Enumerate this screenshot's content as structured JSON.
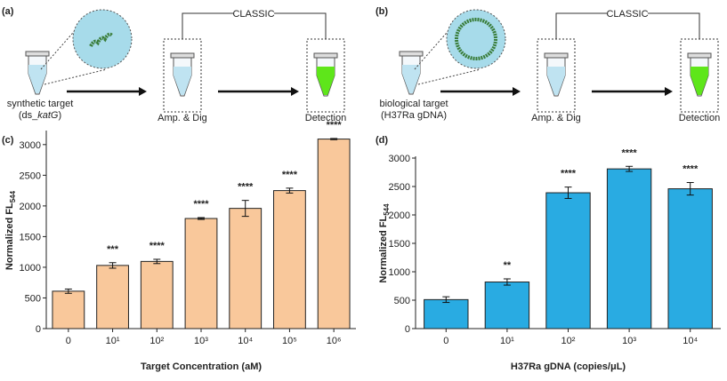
{
  "diagrams": [
    {
      "panel": "(a)",
      "bracket": "CLASSIC",
      "target_line1": "synthetic target",
      "target_line2": [
        "(ds_",
        "katG",
        ")"
      ],
      "step2": "Amp. & Dig",
      "step3": "Detection"
    },
    {
      "panel": "(b)",
      "bracket": "CLASSIC",
      "target_line1": "biological target",
      "target_line2": [
        "(H37Ra gDNA)"
      ],
      "step2": "Amp. & Dig",
      "step3": "Detection"
    }
  ],
  "chart_data": [
    {
      "type": "bar",
      "panel": "(c)",
      "ylabel": "Normalized FL",
      "ylabel_subscript": "544",
      "xlabel": "Target Concentration (aM)",
      "categories": [
        "0",
        "10¹",
        "10²",
        "10³",
        "10⁴",
        "10⁵",
        "10⁶"
      ],
      "values": [
        610,
        1030,
        1095,
        1795,
        1960,
        2250,
        3090
      ],
      "errors": [
        35,
        45,
        35,
        15,
        130,
        40,
        10
      ],
      "significance": [
        null,
        "***",
        "****",
        "****",
        "****",
        "****",
        "****"
      ],
      "color": "#f9c89b",
      "ylim": [
        0,
        3200
      ],
      "yticks": [
        0,
        500,
        1000,
        1500,
        2000,
        2500,
        3000
      ]
    },
    {
      "type": "bar",
      "panel": "(d)",
      "ylabel": "Normalized FL",
      "ylabel_subscript": "544",
      "xlabel": "H37Ra gDNA (copies/μL)",
      "categories": [
        "0",
        "10¹",
        "10²",
        "10³",
        "10⁴"
      ],
      "values": [
        510,
        820,
        2390,
        2810,
        2460
      ],
      "errors": [
        50,
        55,
        100,
        45,
        110
      ],
      "significance": [
        null,
        "**",
        "****",
        "****",
        "****"
      ],
      "color": "#29abe2",
      "ylim": [
        0,
        3000
      ],
      "yticks": [
        0,
        500,
        1000,
        1500,
        2000,
        2500,
        3000
      ]
    }
  ]
}
